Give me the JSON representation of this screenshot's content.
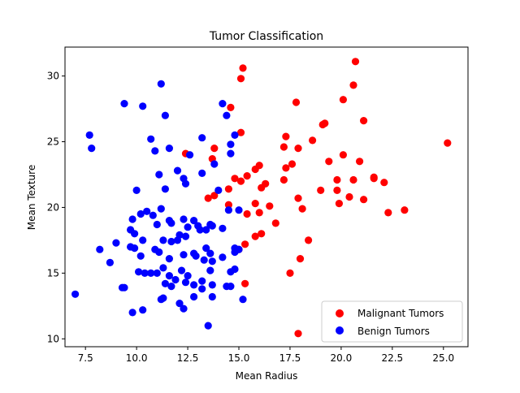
{
  "chart_data": {
    "type": "scatter",
    "title": "Tumor Classification",
    "xlabel": "Mean Radius",
    "ylabel": "Mean Texture",
    "xlim": [
      6.5,
      26.2
    ],
    "ylim": [
      9.4,
      32.2
    ],
    "x_ticks": [
      "7.5",
      "10.0",
      "12.5",
      "15.0",
      "17.5",
      "20.0",
      "22.5",
      "25.0"
    ],
    "x_tick_values": [
      7.5,
      10.0,
      12.5,
      15.0,
      17.5,
      20.0,
      22.5,
      25.0
    ],
    "y_ticks": [
      "10",
      "15",
      "20",
      "25",
      "30"
    ],
    "y_tick_values": [
      10,
      15,
      20,
      25,
      30
    ],
    "grid": false,
    "legend_position": "bottom-right",
    "series": [
      {
        "name": "Malignant Tumors",
        "color": "#ff0000",
        "points": [
          [
            15.2,
            30.6
          ],
          [
            15.1,
            29.8
          ],
          [
            20.7,
            31.1
          ],
          [
            20.6,
            29.3
          ],
          [
            17.8,
            28.0
          ],
          [
            20.1,
            28.2
          ],
          [
            14.6,
            27.6
          ],
          [
            21.1,
            26.6
          ],
          [
            19.2,
            26.4
          ],
          [
            19.1,
            26.3
          ],
          [
            15.1,
            25.7
          ],
          [
            17.3,
            25.4
          ],
          [
            18.6,
            25.1
          ],
          [
            25.2,
            24.9
          ],
          [
            17.2,
            24.6
          ],
          [
            17.9,
            24.5
          ],
          [
            13.8,
            24.5
          ],
          [
            20.1,
            24.0
          ],
          [
            12.4,
            24.1
          ],
          [
            13.7,
            23.7
          ],
          [
            20.9,
            23.5
          ],
          [
            19.4,
            23.5
          ],
          [
            17.6,
            23.3
          ],
          [
            16.0,
            23.2
          ],
          [
            17.3,
            23.0
          ],
          [
            15.8,
            22.9
          ],
          [
            15.4,
            22.4
          ],
          [
            21.6,
            22.3
          ],
          [
            21.6,
            22.2
          ],
          [
            14.8,
            22.2
          ],
          [
            19.8,
            22.1
          ],
          [
            20.6,
            22.1
          ],
          [
            17.2,
            22.1
          ],
          [
            22.1,
            21.9
          ],
          [
            15.1,
            22.0
          ],
          [
            16.3,
            21.8
          ],
          [
            14.5,
            21.4
          ],
          [
            19.0,
            21.3
          ],
          [
            19.8,
            21.3
          ],
          [
            16.1,
            21.5
          ],
          [
            13.8,
            20.9
          ],
          [
            13.5,
            20.7
          ],
          [
            20.4,
            20.8
          ],
          [
            17.9,
            20.7
          ],
          [
            21.1,
            20.6
          ],
          [
            15.8,
            20.3
          ],
          [
            14.5,
            20.2
          ],
          [
            19.9,
            20.3
          ],
          [
            16.5,
            20.1
          ],
          [
            18.1,
            19.9
          ],
          [
            15.4,
            19.5
          ],
          [
            16.0,
            19.6
          ],
          [
            23.1,
            19.8
          ],
          [
            22.3,
            19.6
          ],
          [
            16.8,
            18.8
          ],
          [
            16.1,
            18.0
          ],
          [
            15.8,
            17.8
          ],
          [
            18.4,
            17.5
          ],
          [
            15.3,
            17.2
          ],
          [
            15.0,
            16.8
          ],
          [
            18.0,
            16.1
          ],
          [
            17.5,
            15.0
          ],
          [
            15.3,
            14.2
          ],
          [
            17.9,
            10.4
          ]
        ]
      },
      {
        "name": "Benign Tumors",
        "color": "#0000ff",
        "points": [
          [
            11.2,
            29.4
          ],
          [
            9.4,
            27.9
          ],
          [
            10.3,
            27.7
          ],
          [
            14.2,
            27.9
          ],
          [
            11.4,
            27.0
          ],
          [
            14.4,
            27.0
          ],
          [
            7.7,
            25.5
          ],
          [
            7.8,
            24.5
          ],
          [
            10.7,
            25.2
          ],
          [
            13.2,
            25.3
          ],
          [
            14.8,
            25.5
          ],
          [
            14.6,
            24.8
          ],
          [
            11.6,
            24.5
          ],
          [
            10.9,
            24.3
          ],
          [
            12.6,
            24.0
          ],
          [
            14.6,
            24.1
          ],
          [
            13.8,
            23.3
          ],
          [
            12.0,
            22.8
          ],
          [
            11.1,
            22.5
          ],
          [
            13.2,
            22.6
          ],
          [
            12.3,
            22.2
          ],
          [
            12.4,
            21.8
          ],
          [
            11.4,
            21.4
          ],
          [
            10.0,
            21.3
          ],
          [
            14.0,
            21.3
          ],
          [
            14.5,
            19.8
          ],
          [
            15.0,
            19.8
          ],
          [
            11.2,
            19.9
          ],
          [
            10.5,
            19.7
          ],
          [
            10.2,
            19.5
          ],
          [
            10.8,
            19.4
          ],
          [
            9.8,
            19.1
          ],
          [
            11.6,
            19.0
          ],
          [
            12.3,
            19.1
          ],
          [
            12.8,
            19.0
          ],
          [
            13.0,
            18.6
          ],
          [
            13.6,
            18.7
          ],
          [
            13.7,
            18.6
          ],
          [
            14.2,
            18.4
          ],
          [
            11.0,
            18.7
          ],
          [
            11.7,
            18.8
          ],
          [
            12.5,
            18.5
          ],
          [
            9.7,
            18.3
          ],
          [
            9.9,
            18.0
          ],
          [
            12.1,
            17.9
          ],
          [
            12.4,
            17.8
          ],
          [
            13.1,
            18.3
          ],
          [
            13.4,
            18.3
          ],
          [
            11.3,
            17.5
          ],
          [
            11.7,
            17.4
          ],
          [
            12.0,
            17.5
          ],
          [
            10.3,
            17.5
          ],
          [
            8.2,
            16.8
          ],
          [
            9.0,
            17.3
          ],
          [
            9.7,
            17.0
          ],
          [
            9.9,
            16.9
          ],
          [
            10.9,
            16.8
          ],
          [
            11.1,
            16.6
          ],
          [
            12.3,
            16.4
          ],
          [
            12.8,
            16.5
          ],
          [
            13.4,
            16.9
          ],
          [
            13.6,
            16.5
          ],
          [
            14.2,
            16.2
          ],
          [
            14.8,
            16.9
          ],
          [
            15.0,
            16.8
          ],
          [
            14.8,
            16.6
          ],
          [
            10.2,
            16.3
          ],
          [
            11.6,
            16.1
          ],
          [
            12.9,
            16.3
          ],
          [
            13.3,
            16.0
          ],
          [
            13.7,
            15.9
          ],
          [
            8.7,
            15.8
          ],
          [
            11.3,
            15.4
          ],
          [
            12.2,
            15.2
          ],
          [
            13.6,
            15.2
          ],
          [
            14.6,
            15.1
          ],
          [
            14.8,
            15.3
          ],
          [
            10.1,
            15.1
          ],
          [
            10.4,
            15.0
          ],
          [
            10.7,
            15.0
          ],
          [
            11.0,
            15.0
          ],
          [
            11.6,
            14.8
          ],
          [
            11.9,
            14.5
          ],
          [
            12.5,
            14.8
          ],
          [
            13.2,
            14.4
          ],
          [
            11.4,
            14.2
          ],
          [
            12.4,
            14.3
          ],
          [
            12.8,
            14.1
          ],
          [
            13.7,
            14.1
          ],
          [
            11.7,
            14.0
          ],
          [
            13.2,
            13.8
          ],
          [
            14.6,
            14.0
          ],
          [
            14.4,
            14.0
          ],
          [
            9.4,
            13.9
          ],
          [
            9.3,
            13.9
          ],
          [
            7.0,
            13.4
          ],
          [
            11.2,
            13.0
          ],
          [
            11.3,
            13.1
          ],
          [
            12.8,
            13.2
          ],
          [
            13.7,
            13.2
          ],
          [
            15.2,
            13.0
          ],
          [
            12.1,
            12.7
          ],
          [
            10.3,
            12.2
          ],
          [
            9.8,
            12.0
          ],
          [
            12.3,
            12.3
          ],
          [
            13.5,
            11.0
          ]
        ]
      }
    ]
  }
}
